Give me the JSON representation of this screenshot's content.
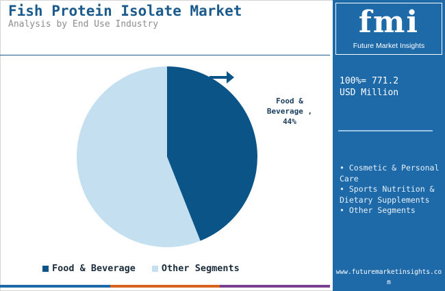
{
  "header": {
    "title": "Fish Protein Isolate Market",
    "subtitle": "Analysis by End Use Industry"
  },
  "chart_data": {
    "type": "pie",
    "title": "Fish Protein Isolate Market",
    "subtitle": "Analysis by End Use Industry",
    "slices": [
      {
        "label": "Food & Beverage",
        "value": 44,
        "color": "#0b5487"
      },
      {
        "label": "Other Segments",
        "value": 56,
        "color": "#c3dff0"
      }
    ],
    "slice_label": {
      "line1": "Food &",
      "line2": "Beverage ,",
      "line3": "44%"
    },
    "legend": [
      "Food & Beverage",
      "Other Segments"
    ],
    "legend_placement": "bottom"
  },
  "panel": {
    "logo_mark": "fmi",
    "logo_text": "Future Market Insights",
    "total_line1": "100%= 771.2",
    "total_line2": "USD Million",
    "segments": [
      "Cosmetic & Personal Care",
      "Sports Nutrition & Dietary Supplements",
      "Other Segments"
    ],
    "website": "www.futuremarketinsights.com"
  },
  "colors": {
    "title": "#1a5a8c",
    "panel_bg": "#1e6aa9",
    "bottom_bar": [
      "#1e6aa9",
      "#d9621f",
      "#7a3e8f"
    ]
  }
}
